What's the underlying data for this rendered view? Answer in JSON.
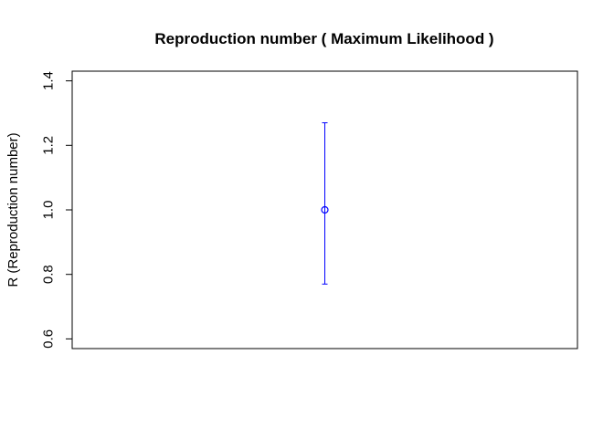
{
  "chart_data": {
    "type": "scatter",
    "title": "Reproduction number ( Maximum Likelihood )",
    "xlabel": "",
    "ylabel": "R (Reproduction number)",
    "ylim": [
      0.57,
      1.43
    ],
    "y_ticks": [
      0.6,
      0.8,
      1.0,
      1.2,
      1.4
    ],
    "y_tick_labels": [
      "0.6",
      "0.8",
      "1.0",
      "1.2",
      "1.4"
    ],
    "grid": false,
    "x_axis_shown": false,
    "points": [
      {
        "x": 1,
        "y": 1.0,
        "lower": 0.77,
        "upper": 1.27
      }
    ],
    "xlim": [
      0.5,
      1.5
    ],
    "colors": {
      "point": "#0000ff",
      "errorbar": "#0000ff",
      "frame": "#000000"
    }
  }
}
